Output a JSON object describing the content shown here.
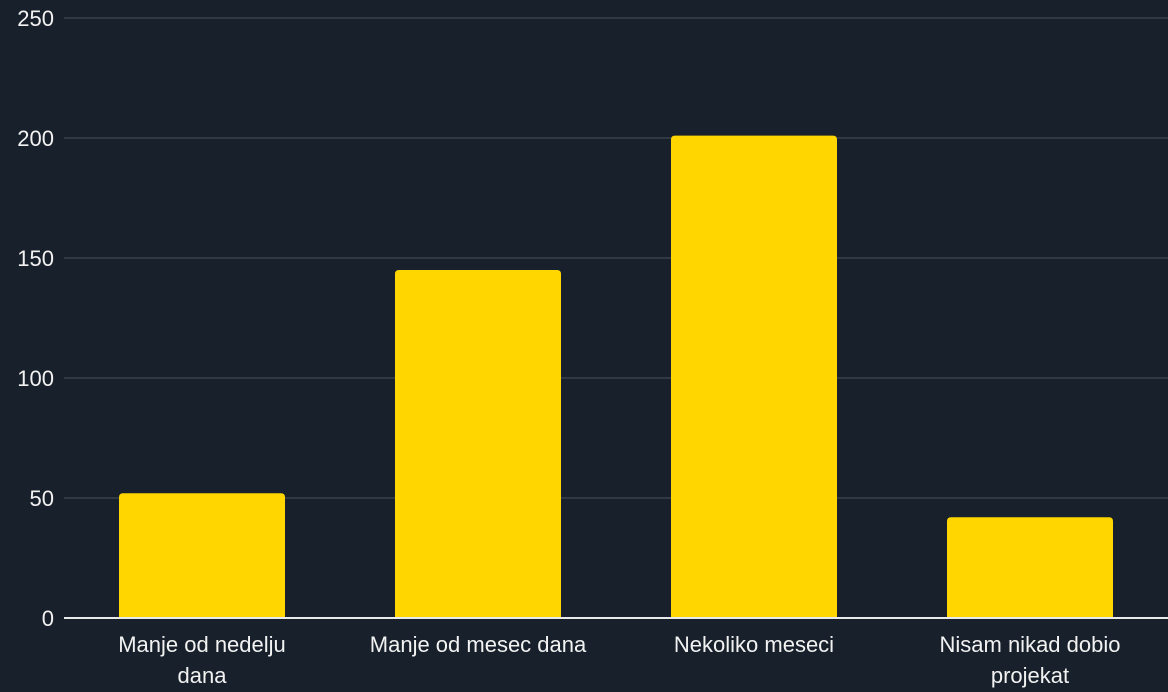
{
  "colors": {
    "background": "#18212b",
    "bar": "#ffd600",
    "grid": "#4a525b",
    "axis": "#e7e9eb",
    "text": "#f2f2f2"
  },
  "chart_data": {
    "type": "bar",
    "title": "",
    "xlabel": "",
    "ylabel": "",
    "ylim": [
      0,
      250
    ],
    "y_ticks": [
      0,
      50,
      100,
      150,
      200,
      250
    ],
    "grid": true,
    "legend": "none",
    "categories": [
      "Manje od nedelju dana",
      "Manje od mesec dana",
      "Nekoliko meseci",
      "Nisam nikad dobio projekat"
    ],
    "category_label_lines": [
      [
        "Manje od nedelju",
        "dana"
      ],
      [
        "Manje od mesec dana"
      ],
      [
        "Nekoliko meseci"
      ],
      [
        "Nisam nikad dobio",
        "projekat"
      ]
    ],
    "values": [
      52,
      145,
      201,
      42
    ]
  }
}
